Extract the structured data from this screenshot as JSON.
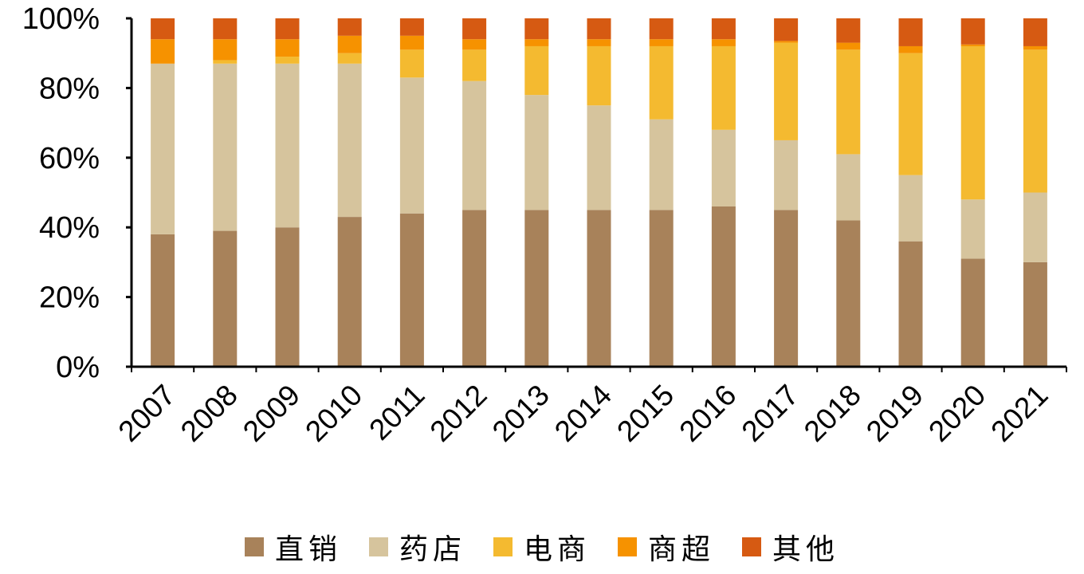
{
  "chart_data": {
    "type": "bar",
    "stacked": true,
    "percent": true,
    "categories": [
      "2007",
      "2008",
      "2009",
      "2010",
      "2011",
      "2012",
      "2013",
      "2014",
      "2015",
      "2016",
      "2017",
      "2018",
      "2019",
      "2020",
      "2021"
    ],
    "series": [
      {
        "name": "直销",
        "color": "#A8825A",
        "values": [
          38,
          39,
          40,
          43,
          44,
          45,
          45,
          45,
          45,
          46,
          45,
          42,
          36,
          31,
          30
        ]
      },
      {
        "name": "药店",
        "color": "#D6C49D",
        "values": [
          49,
          48,
          47,
          44,
          39,
          37,
          33,
          30,
          26,
          22,
          20,
          19,
          19,
          17,
          20
        ]
      },
      {
        "name": "电商",
        "color": "#F4BA30",
        "values": [
          0,
          1,
          2,
          3,
          8,
          9,
          14,
          17,
          21,
          24,
          28,
          30,
          35,
          44,
          41
        ]
      },
      {
        "name": "商超",
        "color": "#F69200",
        "values": [
          7,
          6,
          5,
          5,
          4,
          3,
          2,
          2,
          2,
          2,
          0.5,
          2,
          2,
          0.5,
          1
        ]
      },
      {
        "name": "其他",
        "color": "#D65A12",
        "values": [
          6,
          6,
          6,
          5,
          5,
          6,
          6,
          6,
          6,
          6,
          6.5,
          7,
          8,
          7.5,
          8
        ]
      }
    ],
    "ylim": [
      0,
      100
    ],
    "yticks": [
      "0%",
      "20%",
      "40%",
      "60%",
      "80%",
      "100%"
    ],
    "grid": false,
    "legend": "bottom"
  }
}
